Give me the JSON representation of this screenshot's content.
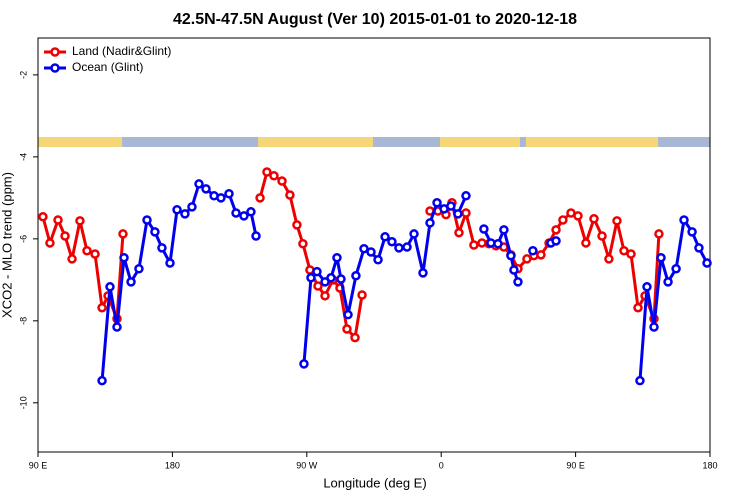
{
  "chart_data": {
    "type": "line",
    "title": "42.5N-47.5N August (Ver 10)   2015-01-01 to 2020-12-18",
    "xlabel": "Longitude (deg E)",
    "ylabel": "XCO2 - MLO trend (ppm)",
    "xlim": [
      90,
      540
    ],
    "ylim": [
      -11.2,
      -1.1
    ],
    "xticks": [
      {
        "value": 90,
        "label": "90 E"
      },
      180,
      {
        "value": 270,
        "label": "90 W"
      },
      {
        "value": 360,
        "label": "0"
      },
      {
        "value": 450,
        "label": "90 E"
      },
      {
        "value": 540,
        "label": "180"
      }
    ],
    "yticks": [
      -2,
      -4,
      -6,
      -8,
      -10
    ],
    "legend": "top-left",
    "series": [
      {
        "name": "Land (Nadir&Glint)",
        "color": "#ee0000",
        "x": [
          93.3,
          98.0,
          103.4,
          108.1,
          112.8,
          118.1,
          122.8,
          128.2,
          132.9,
          136.9,
          142.9,
          146.9,
          null,
          238.7,
          243.3,
          248.0,
          253.4,
          258.7,
          263.4,
          267.4,
          272.1,
          277.5,
          282.2,
          287.5,
          292.2,
          296.9,
          302.3,
          307.0,
          null,
          352.5,
          357.8,
          363.2,
          367.2,
          371.9,
          376.6,
          381.9,
          387.3,
          392.0,
          396.7,
          402.0,
          406.7,
          411.4,
          417.4,
          422.1,
          426.8,
          432.2,
          436.9,
          441.5,
          446.9,
          451.6,
          456.9,
          462.3,
          467.7,
          472.3,
          477.7,
          482.4,
          487.1,
          491.8,
          496.5,
          502.5,
          505.8
        ],
        "values": [
          -5.46,
          -6.1,
          -5.54,
          -5.93,
          -6.49,
          -5.56,
          -6.29,
          -6.37,
          -7.68,
          -7.39,
          -7.95,
          -5.88,
          null,
          -5.0,
          -4.37,
          -4.46,
          -4.59,
          -4.93,
          -5.66,
          -6.12,
          -6.76,
          -7.15,
          -7.39,
          -7.0,
          -7.2,
          -8.2,
          -8.41,
          -7.37,
          null,
          -5.32,
          -5.32,
          -5.41,
          -5.12,
          -5.85,
          -5.37,
          -6.15,
          -6.1,
          -6.12,
          -6.17,
          -6.2,
          -6.39,
          -6.73,
          -6.49,
          -6.41,
          -6.39,
          -6.1,
          -5.78,
          -5.54,
          -5.37,
          -5.44,
          -6.1,
          -5.51,
          -5.93,
          -6.49,
          -5.56,
          -6.29,
          -6.37,
          -7.68,
          -7.39,
          -7.95,
          -5.88
        ]
      },
      {
        "name": "Ocean (Glint)",
        "color": "#0000ee",
        "x": [
          132.9,
          138.2,
          142.9,
          147.6,
          152.3,
          157.6,
          163.0,
          168.3,
          173.0,
          178.4,
          183.1,
          188.4,
          193.1,
          197.8,
          202.5,
          207.9,
          212.5,
          217.9,
          222.6,
          227.9,
          232.6,
          236.0,
          null,
          268.1,
          272.8,
          276.8,
          282.2,
          286.2,
          290.2,
          292.9,
          297.6,
          302.9,
          308.3,
          313.0,
          317.7,
          322.4,
          327.0,
          331.7,
          337.1,
          341.8,
          347.8,
          352.5,
          357.2,
          361.9,
          366.5,
          371.2,
          376.6,
          null,
          388.6,
          393.3,
          398.0,
          402.0,
          406.7,
          408.7,
          411.4,
          null,
          421.4,
          null,
          433.5,
          436.9,
          null,
          493.1,
          497.8,
          502.5,
          507.2,
          511.9,
          517.3,
          522.6,
          528.0,
          532.6,
          538.0
        ],
        "values": [
          -9.46,
          -7.17,
          -8.15,
          -6.46,
          -7.05,
          -6.73,
          -5.54,
          -5.83,
          -6.22,
          -6.59,
          -5.29,
          -5.39,
          -5.22,
          -4.66,
          -4.78,
          -4.95,
          -5.0,
          -4.9,
          -5.37,
          -5.44,
          -5.34,
          -5.93,
          null,
          -9.05,
          -6.95,
          -6.8,
          -7.05,
          -6.95,
          -6.46,
          -6.98,
          -7.85,
          -6.9,
          -6.24,
          -6.32,
          -6.51,
          -5.95,
          -6.07,
          -6.22,
          -6.2,
          -5.88,
          -6.83,
          -5.61,
          -5.12,
          -5.27,
          -5.2,
          -5.39,
          -4.95,
          null,
          -5.76,
          -6.1,
          -6.12,
          -5.78,
          -6.41,
          -6.76,
          -7.05,
          null,
          -6.29,
          null,
          -6.1,
          -6.05,
          null,
          -9.46,
          -7.17,
          -8.15,
          -6.46,
          -7.05,
          -6.73,
          -5.54,
          -5.83,
          -6.22,
          -6.59
        ]
      }
    ]
  }
}
